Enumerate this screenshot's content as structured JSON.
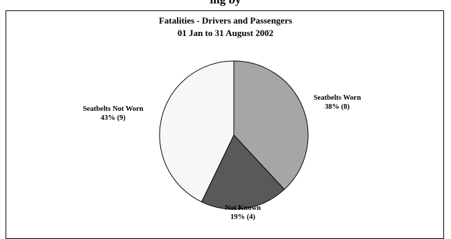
{
  "page_header_fragment": "ing by",
  "chart_data": {
    "type": "pie",
    "title": "Fatalities - Drivers and Passengers",
    "subtitle": "01 Jan to 31 August 2002",
    "slices": [
      {
        "label": "Seatbelts Worn",
        "value": 8,
        "percent": 38,
        "value_text": "38% (8)",
        "color": "#a6a6a6"
      },
      {
        "label": "Not Known",
        "value": 4,
        "percent": 19,
        "value_text": "19% (4)",
        "color": "#595959"
      },
      {
        "label": "Seatbelts Not Worn",
        "value": 9,
        "percent": 43,
        "value_text": "43% (9)",
        "color": "#f7f7f7"
      }
    ],
    "start_angle": "12 o'clock",
    "direction": "clockwise"
  }
}
